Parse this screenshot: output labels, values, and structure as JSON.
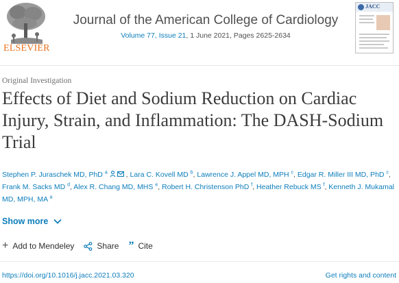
{
  "publisher": {
    "name": "ELSEVIER"
  },
  "journal": {
    "title": "Journal of the American College of Cardiology",
    "volume_link": "Volume 77, Issue 21",
    "date_pages": ", 1 June 2021, Pages 2625-2634",
    "cover_label": "JACC"
  },
  "article": {
    "type": "Original Investigation",
    "title": "Effects of Diet and Sodium Reduction on Cardiac Injury, Strain, and Inflammation: The DASH-Sodium Trial"
  },
  "authors": [
    {
      "name": "Stephen P. Juraschek MD, PhD",
      "sup": "a",
      "icons": true
    },
    {
      "name": "Lara C. Kovell MD",
      "sup": "b"
    },
    {
      "name": "Lawrence J. Appel MD, MPH",
      "sup": "c"
    },
    {
      "name": "Edgar R. Miller III MD, PhD",
      "sup": "c"
    },
    {
      "name": "Frank M. Sacks MD",
      "sup": "d"
    },
    {
      "name": "Alex R. Chang MD, MHS",
      "sup": "e"
    },
    {
      "name": "Robert H. Christenson PhD",
      "sup": "f"
    },
    {
      "name": "Heather Rebuck MS",
      "sup": "f"
    },
    {
      "name": "Kenneth J. Mukamal MD, MPH, MA",
      "sup": "a"
    }
  ],
  "show_more_label": "Show more",
  "actions": {
    "mendeley": "Add to Mendeley",
    "share": "Share",
    "cite": "Cite"
  },
  "doi": "https://doi.org/10.1016/j.jacc.2021.03.320",
  "rights_label": "Get rights and content",
  "colors": {
    "link": "#0c7dbb",
    "elsevier_orange": "#e9711c",
    "text": "#2e2e2e"
  },
  "icons": [
    "person-icon",
    "envelope-icon",
    "chevron-down-icon",
    "plus-icon",
    "share-icon",
    "quote-icon"
  ]
}
